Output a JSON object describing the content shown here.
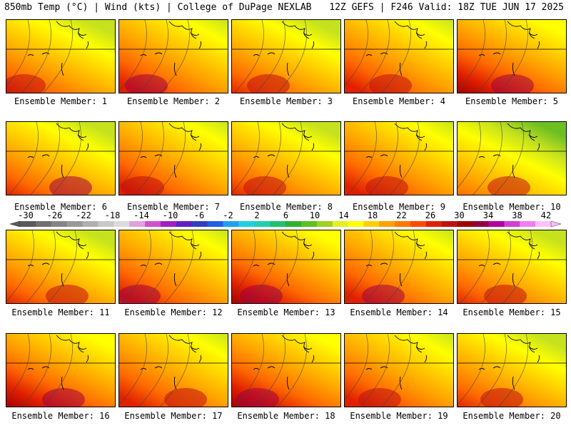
{
  "header": {
    "left": "850mb Temp (°C) | Wind (kts) | College of DuPage NEXLAB",
    "right": "12Z GEFS | F246 Valid: 18Z TUE JUN 17 2025"
  },
  "panels": [
    {
      "label": "Ensemble Member: 1",
      "warmth": 0.55
    },
    {
      "label": "Ensemble Member: 2",
      "warmth": 0.6
    },
    {
      "label": "Ensemble Member: 3",
      "warmth": 0.4
    },
    {
      "label": "Ensemble Member: 4",
      "warmth": 0.5
    },
    {
      "label": "Ensemble Member: 5",
      "warmth": 0.65
    },
    {
      "label": "Ensemble Member: 6",
      "warmth": 0.6
    },
    {
      "label": "Ensemble Member: 7",
      "warmth": 0.55
    },
    {
      "label": "Ensemble Member: 8",
      "warmth": 0.45
    },
    {
      "label": "Ensemble Member: 9",
      "warmth": 0.5
    },
    {
      "label": "Ensemble Member: 10",
      "warmth": 0.35
    },
    {
      "label": "Ensemble Member: 11",
      "warmth": 0.5
    },
    {
      "label": "Ensemble Member: 12",
      "warmth": 0.6
    },
    {
      "label": "Ensemble Member: 13",
      "warmth": 0.7
    },
    {
      "label": "Ensemble Member: 14",
      "warmth": 0.6
    },
    {
      "label": "Ensemble Member: 15",
      "warmth": 0.45
    },
    {
      "label": "Ensemble Member: 16",
      "warmth": 0.65
    },
    {
      "label": "Ensemble Member: 17",
      "warmth": 0.55
    },
    {
      "label": "Ensemble Member: 18",
      "warmth": 0.65
    },
    {
      "label": "Ensemble Member: 19",
      "warmth": 0.45
    },
    {
      "label": "Ensemble Member: 20",
      "warmth": 0.5
    }
  ],
  "colorbar": {
    "labels": [
      "-30",
      "-26",
      "-22",
      "-18",
      "-14",
      "-10",
      "-6",
      "-2",
      "2",
      "6",
      "10",
      "14",
      "18",
      "22",
      "26",
      "30",
      "34",
      "38",
      "42"
    ],
    "colors": [
      "#5a5a5a",
      "#707070",
      "#858585",
      "#999999",
      "#b0b0b0",
      "#c8c8c8",
      "#dcdcdc",
      "#e0a0e0",
      "#d050d0",
      "#a020c0",
      "#6020c0",
      "#3040c0",
      "#2060e0",
      "#20a0f0",
      "#20d0e0",
      "#20d0b0",
      "#20c070",
      "#30b030",
      "#60c020",
      "#a0d020",
      "#e0f020",
      "#ffff00",
      "#ffd000",
      "#ffa000",
      "#ff7800",
      "#ff4800",
      "#e02000",
      "#c01010",
      "#a00000",
      "#900040",
      "#b000a0",
      "#d040d0",
      "#f080f0",
      "#ffc0ff"
    ]
  }
}
